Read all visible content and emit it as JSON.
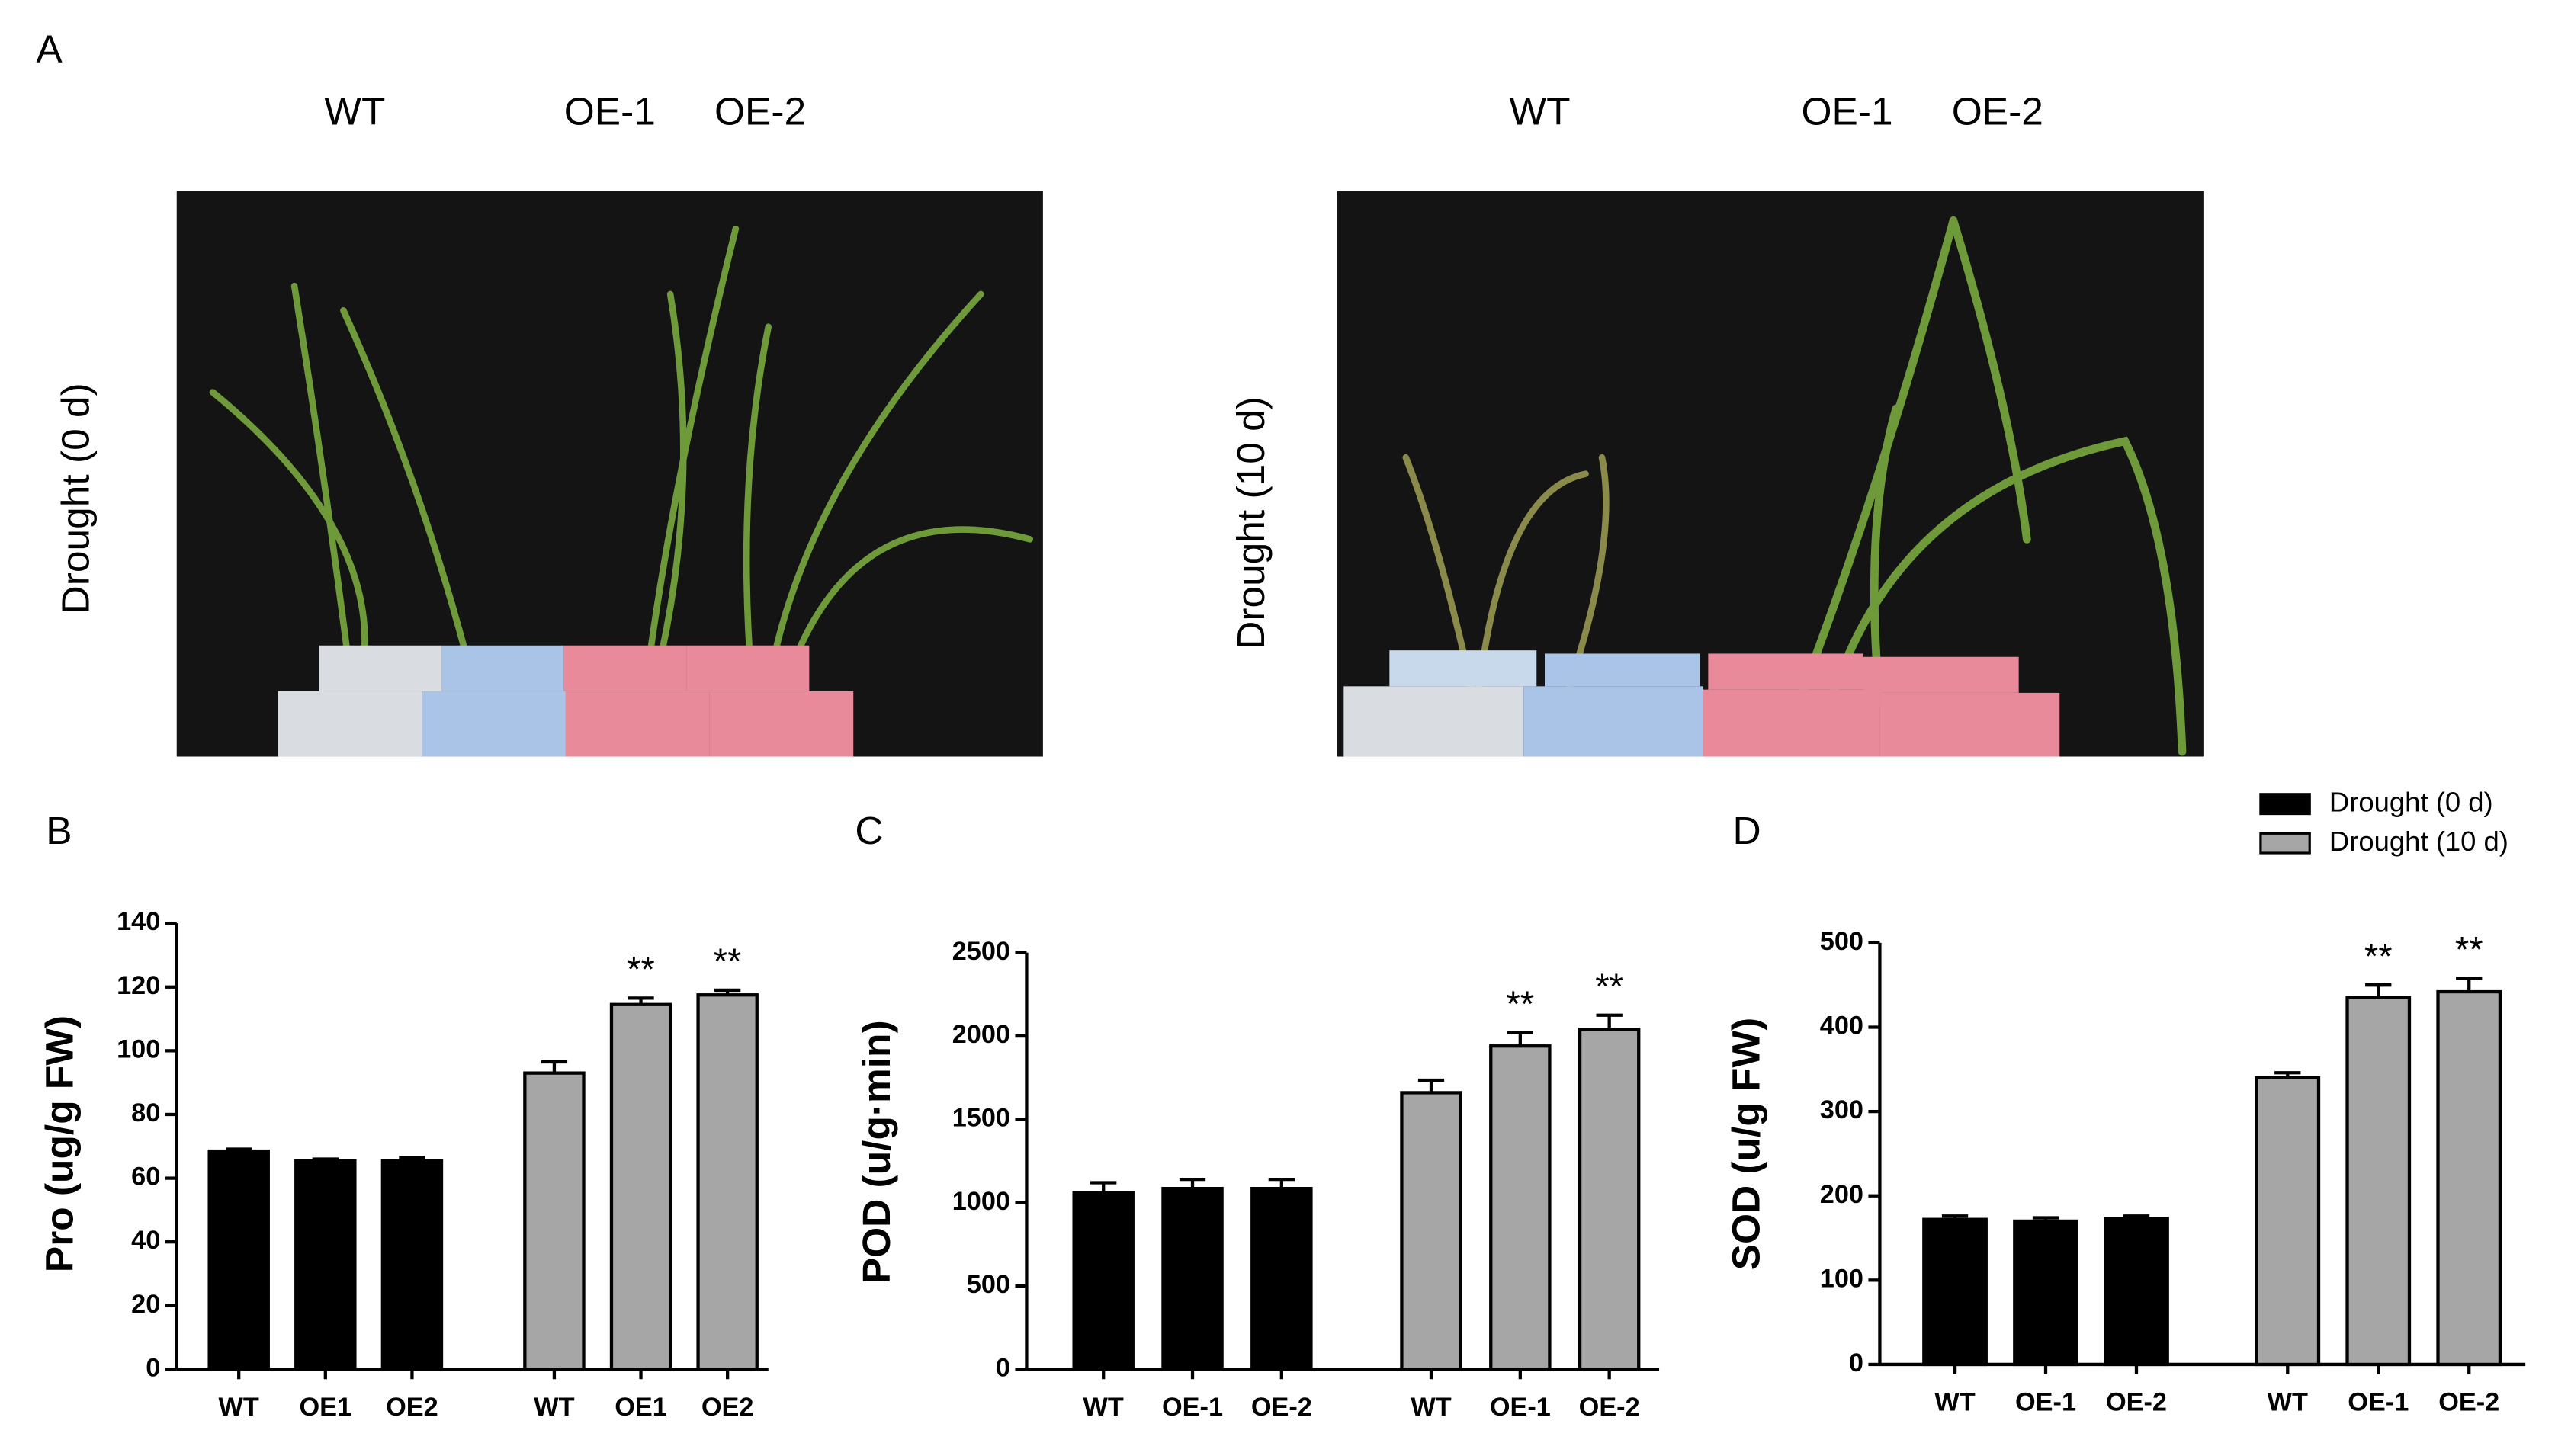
{
  "figure_a": {
    "panel_label": "A",
    "photos": [
      {
        "condition": "Drought (0 d)",
        "labels": [
          "WT",
          "OE-1",
          "OE-2"
        ]
      },
      {
        "condition": "Drought (10 d)",
        "labels": [
          "WT",
          "OE-1",
          "OE-2"
        ]
      }
    ]
  },
  "legend": [
    {
      "name": "Drought (0 d)",
      "color": "#000000"
    },
    {
      "name": "Drought (10 d)",
      "color": "#a6a6a6"
    }
  ],
  "chart_data": [
    {
      "type": "bar",
      "panel_label": "B",
      "y_label": "Pro (ug/g FW)",
      "categories": [
        "WT",
        "OE1",
        "OE2",
        "WT",
        "OE1",
        "OE2"
      ],
      "series": [
        {
          "legend": 0,
          "values": [
            68.5,
            65.5,
            65.5,
            null,
            null,
            null
          ],
          "errors": [
            0.6,
            0.5,
            1,
            null,
            null,
            null
          ]
        },
        {
          "legend": 1,
          "values": [
            null,
            null,
            null,
            93,
            114.5,
            117.5
          ],
          "errors": [
            null,
            null,
            null,
            3.5,
            2,
            1.5
          ],
          "significance": [
            null,
            null,
            null,
            null,
            "**",
            "**"
          ]
        }
      ],
      "ylim": [
        0,
        140
      ],
      "yticks": [
        0,
        20,
        40,
        60,
        80,
        100,
        120,
        140
      ]
    },
    {
      "type": "bar",
      "panel_label": "C",
      "y_label": "POD (u/g·min)",
      "categories": [
        "WT",
        "OE-1",
        "OE-2",
        "WT",
        "OE-1",
        "OE-2"
      ],
      "series": [
        {
          "legend": 0,
          "values": [
            1060,
            1085,
            1085,
            null,
            null,
            null
          ],
          "errors": [
            60,
            55,
            55,
            null,
            null,
            null
          ]
        },
        {
          "legend": 1,
          "values": [
            null,
            null,
            null,
            1660,
            1940,
            2040
          ],
          "errors": [
            null,
            null,
            null,
            75,
            80,
            85
          ],
          "significance": [
            null,
            null,
            null,
            null,
            "**",
            "**"
          ]
        }
      ],
      "ylim": [
        0,
        2500
      ],
      "yticks": [
        0,
        500,
        1000,
        1500,
        2000,
        2500
      ]
    },
    {
      "type": "bar",
      "panel_label": "D",
      "y_label": "SOD (u/g FW)",
      "categories": [
        "WT",
        "OE-1",
        "OE-2",
        "WT",
        "OE-1",
        "OE-2"
      ],
      "series": [
        {
          "legend": 0,
          "values": [
            172,
            170,
            173,
            null,
            null,
            null
          ],
          "errors": [
            4,
            4,
            3,
            null,
            null,
            null
          ]
        },
        {
          "legend": 1,
          "values": [
            null,
            null,
            null,
            340,
            435,
            442
          ],
          "errors": [
            null,
            null,
            null,
            6,
            15,
            16
          ],
          "significance": [
            null,
            null,
            null,
            null,
            "**",
            "**"
          ]
        }
      ],
      "ylim": [
        0,
        500
      ],
      "yticks": [
        0,
        100,
        200,
        300,
        400,
        500
      ]
    }
  ]
}
